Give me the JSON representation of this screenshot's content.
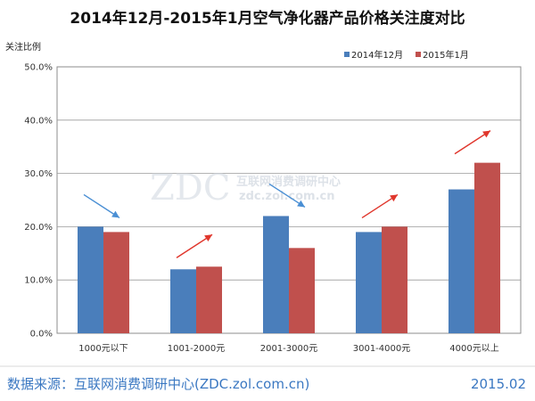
{
  "chart_data": {
    "type": "bar",
    "title": "2014年12月-2015年1月空气净化器产品价格关注度对比",
    "ylabel": "关注比例",
    "xlabel": "",
    "categories": [
      "1000元以下",
      "1001-2000元",
      "2001-3000元",
      "3001-4000元",
      "4000元以上"
    ],
    "series": [
      {
        "name": "2014年12月",
        "color": "#4a7ebb",
        "values": [
          20.0,
          12.0,
          22.0,
          19.0,
          27.0
        ]
      },
      {
        "name": "2015年1月",
        "color": "#c0504d",
        "values": [
          19.0,
          12.5,
          16.0,
          20.0,
          32.0
        ]
      }
    ],
    "yticks": [
      "0.0%",
      "10.0%",
      "20.0%",
      "30.0%",
      "40.0%",
      "50.0%"
    ],
    "ylim": [
      0,
      50
    ],
    "grid": true,
    "legend_position": "top-right",
    "trend_arrows": [
      "down",
      "up",
      "down",
      "up",
      "up"
    ],
    "trend_colors": {
      "up": "#e0362c",
      "down": "#4a8fd4"
    }
  },
  "watermark": {
    "logo": "ZDC",
    "text": "互联网消费调研中心",
    "url": "zdc.zol.com.cn"
  },
  "footer": {
    "source": "数据来源：互联网消费调研中心(ZDC.zol.com.cn)",
    "date": "2015.02"
  }
}
